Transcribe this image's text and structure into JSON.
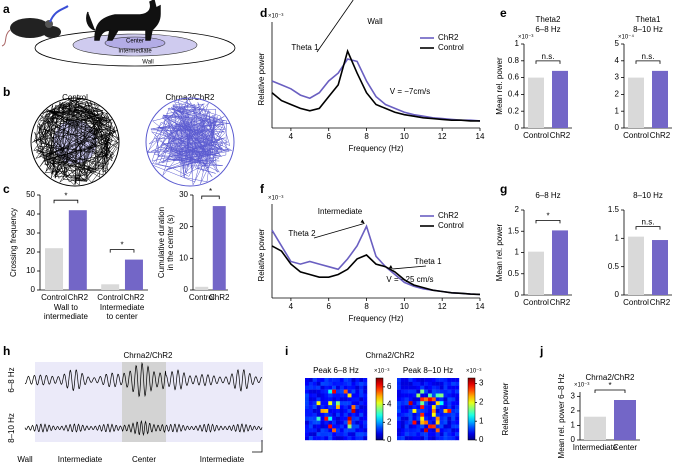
{
  "panel_letters": [
    "a",
    "b",
    "c",
    "d",
    "e",
    "f",
    "g",
    "h",
    "i",
    "j"
  ],
  "panel_a": {
    "labels": [
      "Center",
      "Intermediate",
      "Wall"
    ]
  },
  "panel_b": {
    "titles": [
      "Control",
      "Chrna2/ChR2"
    ]
  },
  "chart_data": [
    {
      "type": "bar",
      "ylabel": "Crossing frequency",
      "categories": [
        "Control",
        "ChR2",
        "Control",
        "ChR2"
      ],
      "group_labels": [
        [
          "Wall to",
          "intermediate"
        ],
        [
          "Intermediate",
          "to center"
        ]
      ],
      "values": [
        22,
        42,
        3,
        16
      ],
      "colors": [
        "#d9d9d9",
        "#7366c7",
        "#d9d9d9",
        "#7366c7"
      ],
      "ylim": [
        0,
        50
      ],
      "yticks": [
        0,
        10,
        20,
        30,
        40,
        50
      ],
      "significance": [
        "*",
        "*"
      ]
    },
    {
      "type": "bar",
      "ylabel": [
        "Cumulative duration",
        "in the center (s)"
      ],
      "categories": [
        "Control",
        "ChR2"
      ],
      "values": [
        1,
        26.5
      ],
      "colors": [
        "#d9d9d9",
        "#7366c7"
      ],
      "ylim": [
        0,
        30
      ],
      "yticks": [
        0,
        10,
        20,
        30
      ],
      "significance": [
        "*"
      ]
    },
    {
      "type": "line",
      "title": "Wall",
      "multiplier": "×10⁻³",
      "ylabel": "Relative power",
      "xlabel": "Frequency (Hz)",
      "x": [
        3,
        3.5,
        4,
        4.5,
        5,
        5.5,
        6,
        6.5,
        7,
        7.5,
        8,
        8.5,
        9,
        9.5,
        10,
        10.5,
        11,
        11.5,
        12,
        12.5,
        13,
        13.5,
        14
      ],
      "xlim": [
        3,
        14
      ],
      "xticks": [
        4,
        6,
        8,
        10,
        12,
        14
      ],
      "ylim": [
        0,
        1.25
      ],
      "series": [
        {
          "name": "ChR2",
          "color": "#6a5fc1",
          "values": [
            0.6,
            0.55,
            0.5,
            0.42,
            0.38,
            0.45,
            0.6,
            0.7,
            0.88,
            0.85,
            0.6,
            0.4,
            0.3,
            0.25,
            0.2,
            0.17,
            0.15,
            0.13,
            0.12,
            0.11,
            0.1,
            0.1,
            0.09
          ]
        },
        {
          "name": "Control",
          "color": "#000000",
          "values": [
            0.45,
            0.35,
            0.3,
            0.25,
            0.22,
            0.25,
            0.4,
            0.55,
            0.98,
            0.7,
            0.45,
            0.3,
            0.25,
            0.2,
            0.17,
            0.15,
            0.13,
            0.12,
            0.11,
            0.1,
            0.1,
            0.09,
            0.09
          ]
        }
      ],
      "annotations": [
        "Theta 1",
        "V = −7cm/s"
      ]
    },
    {
      "type": "bar",
      "title": [
        "Theta2",
        "6–8 Hz"
      ],
      "multiplier": "×10⁻³",
      "ylabel": "Mean rel. power",
      "categories": [
        "Control",
        "ChR2"
      ],
      "values": [
        0.6,
        0.68
      ],
      "colors": [
        "#d9d9d9",
        "#7366c7"
      ],
      "ylim": [
        0,
        1
      ],
      "yticks": [
        0,
        0.2,
        0.4,
        0.6,
        0.8,
        1
      ],
      "significance": [
        "n.s."
      ]
    },
    {
      "type": "bar",
      "title": [
        "Theta1",
        "8–10 Hz"
      ],
      "multiplier": "×10⁻⁴",
      "categories": [
        "Control",
        "ChR2"
      ],
      "values": [
        3.0,
        3.4
      ],
      "colors": [
        "#d9d9d9",
        "#7366c7"
      ],
      "ylim": [
        0,
        5
      ],
      "yticks": [
        0,
        1,
        2,
        3,
        4,
        5
      ],
      "significance": [
        "n.s."
      ]
    },
    {
      "type": "line",
      "title": "Intermediate",
      "multiplier": "×10⁻³",
      "ylabel": "Relative power",
      "xlabel": "Frequency (Hz)",
      "x": [
        3,
        3.5,
        4,
        4.5,
        5,
        5.5,
        6,
        6.5,
        7,
        7.5,
        8,
        8.5,
        9,
        9.5,
        10,
        10.5,
        11,
        11.5,
        12,
        12.5,
        13,
        13.5,
        14
      ],
      "xlim": [
        3,
        14
      ],
      "xticks": [
        4,
        6,
        8,
        10,
        12,
        14
      ],
      "ylim": [
        0,
        3.3
      ],
      "series": [
        {
          "name": "ChR2",
          "color": "#6a5fc1",
          "values": [
            2.6,
            2.0,
            1.4,
            1.3,
            1.4,
            1.3,
            1.2,
            1.1,
            1.5,
            2.0,
            2.75,
            1.6,
            1.2,
            0.9,
            0.6,
            0.45,
            0.35,
            0.3,
            0.25,
            0.2,
            0.18,
            0.15,
            0.14
          ]
        },
        {
          "name": "Control",
          "color": "#000000",
          "values": [
            2.0,
            1.8,
            1.3,
            1.0,
            0.9,
            0.8,
            0.8,
            0.9,
            1.1,
            1.5,
            1.65,
            1.3,
            1.2,
            1.0,
            0.7,
            0.5,
            0.4,
            0.3,
            0.25,
            0.2,
            0.18,
            0.15,
            0.14
          ]
        }
      ],
      "annotations": [
        "Theta 2",
        "Theta 1",
        "V = −25 cm/s"
      ]
    },
    {
      "type": "bar",
      "title": "6–8 Hz",
      "ylabel": "Mean rel. power",
      "categories": [
        "Control",
        "ChR2"
      ],
      "values": [
        1.02,
        1.52
      ],
      "colors": [
        "#d9d9d9",
        "#7366c7"
      ],
      "ylim": [
        0,
        2
      ],
      "yticks": [
        0,
        0.5,
        1,
        1.5,
        2
      ],
      "significance": [
        "*"
      ]
    },
    {
      "type": "bar",
      "title": "8–10 Hz",
      "categories": [
        "Control",
        "ChR2"
      ],
      "values": [
        1.03,
        0.97
      ],
      "colors": [
        "#d9d9d9",
        "#7366c7"
      ],
      "ylim": [
        0,
        1.5
      ],
      "yticks": [
        0,
        0.5,
        1,
        1.5
      ],
      "significance": [
        "n.s."
      ]
    },
    {
      "type": "bar",
      "title": "Chrna2/ChR2",
      "multiplier": "×10⁻³",
      "ylabel": "Mean rel. power 6–8 Hz",
      "categories": [
        "Intermediate",
        "Center"
      ],
      "values": [
        1.6,
        2.75
      ],
      "colors": [
        "#d9d9d9",
        "#7366c7"
      ],
      "ylim": [
        0,
        3.3
      ],
      "yticks": [
        0,
        1,
        2,
        3
      ],
      "significance": [
        "*"
      ]
    }
  ],
  "panel_h": {
    "title": "Chrna2/ChR2",
    "row_labels": [
      "6–8 Hz",
      "8–10 Hz"
    ],
    "zone_labels": [
      "Wall",
      "Intermediate",
      "Center",
      "Intermediate"
    ]
  },
  "panel_i": {
    "title": "Chrna2/ChR2",
    "colorbar_label": "Relative power",
    "maps": [
      {
        "title": "Peak 6–8 Hz",
        "multiplier": "×10⁻³",
        "lim": [
          0,
          7
        ],
        "ticks": [
          0,
          2,
          4,
          6
        ]
      },
      {
        "title": "Peak 8–10 Hz",
        "multiplier": "×10⁻³",
        "lim": [
          0,
          3.3
        ],
        "ticks": [
          0,
          1,
          2,
          3
        ]
      }
    ]
  }
}
